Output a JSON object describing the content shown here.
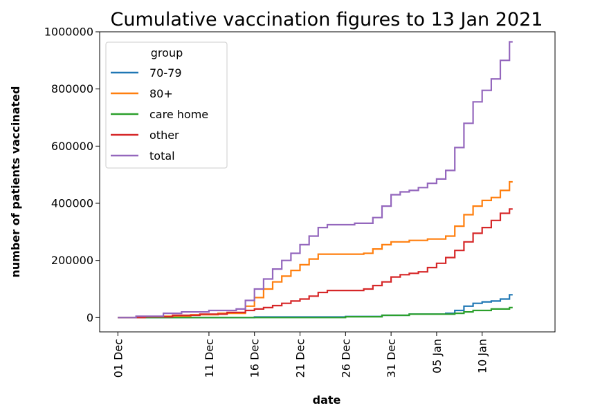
{
  "chart_data": {
    "type": "line",
    "title": "Cumulative vaccination figures to 13 Jan 2021",
    "xlabel": "date",
    "ylabel": "number of patients vaccinated",
    "xlim": [
      "2020-11-29",
      "2021-01-18"
    ],
    "ylim": [
      -50000,
      1000000
    ],
    "yticks": [
      0,
      200000,
      400000,
      600000,
      800000,
      1000000
    ],
    "ytick_labels": [
      "0",
      "200000",
      "400000",
      "600000",
      "800000",
      "1000000"
    ],
    "xticks": [
      "2020-12-01",
      "2020-12-11",
      "2020-12-16",
      "2020-12-21",
      "2020-12-26",
      "2020-12-31",
      "2021-01-05",
      "2021-01-10"
    ],
    "xtick_labels": [
      "01 Dec",
      "11 Dec",
      "16 Dec",
      "21 Dec",
      "26 Dec",
      "31 Dec",
      "05 Jan",
      "10 Jan"
    ],
    "grid": false,
    "legend": {
      "title": "group",
      "placement": "top-left"
    },
    "step": true,
    "series": [
      {
        "name": "70-79",
        "color": "#1f77b4",
        "points": [
          [
            "2020-12-01",
            0
          ],
          [
            "2020-12-16",
            2000
          ],
          [
            "2020-12-26",
            4000
          ],
          [
            "2020-12-30",
            8000
          ],
          [
            "2021-01-02",
            12000
          ],
          [
            "2021-01-06",
            15000
          ],
          [
            "2021-01-07",
            25000
          ],
          [
            "2021-01-08",
            40000
          ],
          [
            "2021-01-09",
            50000
          ],
          [
            "2021-01-10",
            55000
          ],
          [
            "2021-01-11",
            58000
          ],
          [
            "2021-01-12",
            65000
          ],
          [
            "2021-01-13",
            80000
          ]
        ]
      },
      {
        "name": "80+",
        "color": "#ff7f0e",
        "points": [
          [
            "2020-12-01",
            0
          ],
          [
            "2020-12-03",
            2000
          ],
          [
            "2020-12-06",
            5000
          ],
          [
            "2020-12-09",
            10000
          ],
          [
            "2020-12-12",
            15000
          ],
          [
            "2020-12-15",
            40000
          ],
          [
            "2020-12-16",
            70000
          ],
          [
            "2020-12-17",
            100000
          ],
          [
            "2020-12-18",
            125000
          ],
          [
            "2020-12-19",
            145000
          ],
          [
            "2020-12-20",
            165000
          ],
          [
            "2020-12-21",
            185000
          ],
          [
            "2020-12-22",
            205000
          ],
          [
            "2020-12-23",
            222000
          ],
          [
            "2020-12-28",
            225000
          ],
          [
            "2020-12-29",
            240000
          ],
          [
            "2020-12-30",
            255000
          ],
          [
            "2020-12-31",
            265000
          ],
          [
            "2021-01-02",
            270000
          ],
          [
            "2021-01-04",
            275000
          ],
          [
            "2021-01-06",
            285000
          ],
          [
            "2021-01-07",
            320000
          ],
          [
            "2021-01-08",
            360000
          ],
          [
            "2021-01-09",
            390000
          ],
          [
            "2021-01-10",
            410000
          ],
          [
            "2021-01-11",
            420000
          ],
          [
            "2021-01-12",
            445000
          ],
          [
            "2021-01-13",
            475000
          ]
        ]
      },
      {
        "name": "care home",
        "color": "#2ca02c",
        "points": [
          [
            "2020-12-01",
            0
          ],
          [
            "2020-12-26",
            3000
          ],
          [
            "2020-12-30",
            8000
          ],
          [
            "2021-01-02",
            12000
          ],
          [
            "2021-01-07",
            15000
          ],
          [
            "2021-01-08",
            20000
          ],
          [
            "2021-01-09",
            25000
          ],
          [
            "2021-01-11",
            30000
          ],
          [
            "2021-01-13",
            35000
          ]
        ]
      },
      {
        "name": "other",
        "color": "#d62728",
        "points": [
          [
            "2020-12-01",
            0
          ],
          [
            "2020-12-04",
            3000
          ],
          [
            "2020-12-07",
            8000
          ],
          [
            "2020-12-10",
            12000
          ],
          [
            "2020-12-13",
            18000
          ],
          [
            "2020-12-15",
            25000
          ],
          [
            "2020-12-16",
            30000
          ],
          [
            "2020-12-17",
            35000
          ],
          [
            "2020-12-18",
            42000
          ],
          [
            "2020-12-19",
            50000
          ],
          [
            "2020-12-20",
            58000
          ],
          [
            "2020-12-21",
            65000
          ],
          [
            "2020-12-22",
            75000
          ],
          [
            "2020-12-23",
            88000
          ],
          [
            "2020-12-24",
            95000
          ],
          [
            "2020-12-28",
            100000
          ],
          [
            "2020-12-29",
            112000
          ],
          [
            "2020-12-30",
            125000
          ],
          [
            "2020-12-31",
            142000
          ],
          [
            "2021-01-01",
            150000
          ],
          [
            "2021-01-02",
            155000
          ],
          [
            "2021-01-03",
            160000
          ],
          [
            "2021-01-04",
            175000
          ],
          [
            "2021-01-05",
            190000
          ],
          [
            "2021-01-06",
            210000
          ],
          [
            "2021-01-07",
            235000
          ],
          [
            "2021-01-08",
            265000
          ],
          [
            "2021-01-09",
            295000
          ],
          [
            "2021-01-10",
            315000
          ],
          [
            "2021-01-11",
            340000
          ],
          [
            "2021-01-12",
            365000
          ],
          [
            "2021-01-13",
            380000
          ]
        ]
      },
      {
        "name": "total",
        "color": "#9467bd",
        "points": [
          [
            "2020-12-01",
            0
          ],
          [
            "2020-12-03",
            5000
          ],
          [
            "2020-12-06",
            15000
          ],
          [
            "2020-12-08",
            20000
          ],
          [
            "2020-12-11",
            25000
          ],
          [
            "2020-12-14",
            30000
          ],
          [
            "2020-12-15",
            60000
          ],
          [
            "2020-12-16",
            100000
          ],
          [
            "2020-12-17",
            135000
          ],
          [
            "2020-12-18",
            170000
          ],
          [
            "2020-12-19",
            200000
          ],
          [
            "2020-12-20",
            225000
          ],
          [
            "2020-12-21",
            255000
          ],
          [
            "2020-12-22",
            285000
          ],
          [
            "2020-12-23",
            315000
          ],
          [
            "2020-12-24",
            325000
          ],
          [
            "2020-12-27",
            330000
          ],
          [
            "2020-12-29",
            350000
          ],
          [
            "2020-12-30",
            390000
          ],
          [
            "2020-12-31",
            430000
          ],
          [
            "2021-01-01",
            440000
          ],
          [
            "2021-01-02",
            445000
          ],
          [
            "2021-01-03",
            455000
          ],
          [
            "2021-01-04",
            470000
          ],
          [
            "2021-01-05",
            485000
          ],
          [
            "2021-01-06",
            515000
          ],
          [
            "2021-01-07",
            595000
          ],
          [
            "2021-01-08",
            680000
          ],
          [
            "2021-01-09",
            755000
          ],
          [
            "2021-01-10",
            795000
          ],
          [
            "2021-01-11",
            835000
          ],
          [
            "2021-01-12",
            900000
          ],
          [
            "2021-01-13",
            965000
          ]
        ]
      }
    ]
  }
}
